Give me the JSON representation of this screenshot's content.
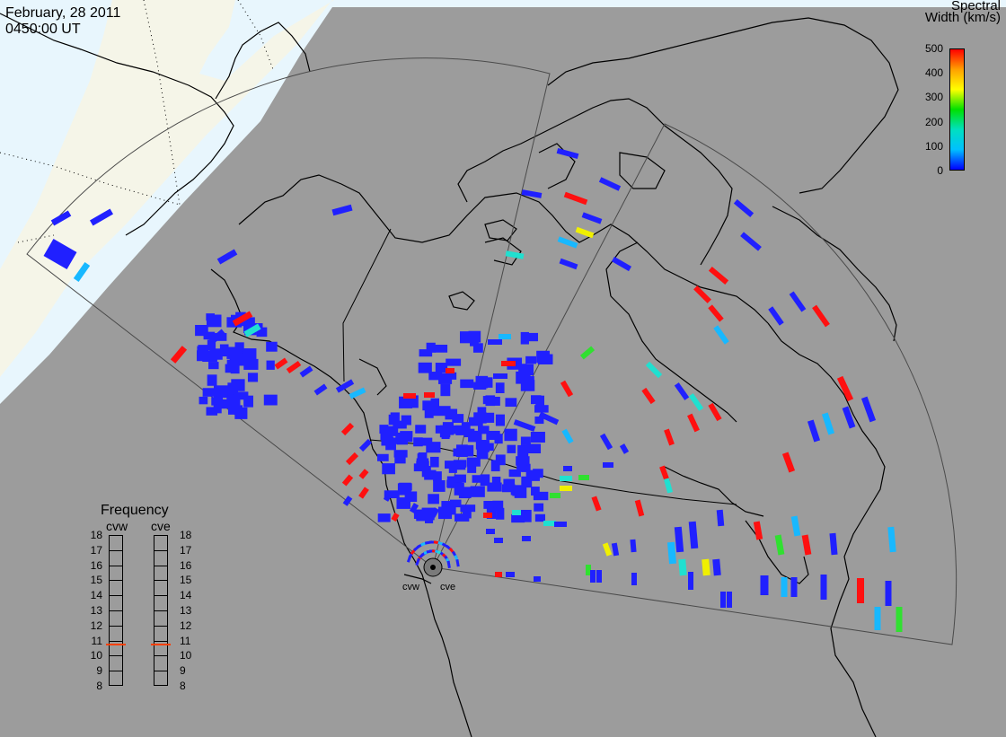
{
  "header": {
    "date": "February, 28 2011",
    "time": "0450:00 UT"
  },
  "colorbar": {
    "title_line1": "Spectral",
    "title_line2": "Width (km/s)",
    "ticks": [
      "500",
      "400",
      "300",
      "200",
      "100",
      "0"
    ],
    "stops": [
      "#0000ff",
      "#00c0ff",
      "#00e0c0",
      "#00e000",
      "#ffff00",
      "#ffa000",
      "#ff0000"
    ]
  },
  "frequency_panel": {
    "title": "Frequency",
    "cvw_label": "cvw",
    "cve_label": "cve",
    "ticks": [
      "18",
      "17",
      "16",
      "15",
      "14",
      "13",
      "12",
      "11",
      "10",
      "9",
      "8"
    ],
    "cvw_value_mhz": 10.8,
    "cve_value_mhz": 10.8,
    "indicator_color": "#ff4000"
  },
  "radars": {
    "west": "cvw",
    "east": "cve"
  },
  "colors": {
    "ocean": "#e8f6fd",
    "day_land": "#f5f5e8",
    "night": "#9c9c9c",
    "coast": "#000000",
    "fov": "#4a4a4a"
  },
  "echoes": {
    "blue": "#2020ff",
    "cyan": "#18b8ff",
    "teal": "#20e0d0",
    "green": "#30e030",
    "yellow": "#f0f000",
    "red": "#ff1010"
  }
}
